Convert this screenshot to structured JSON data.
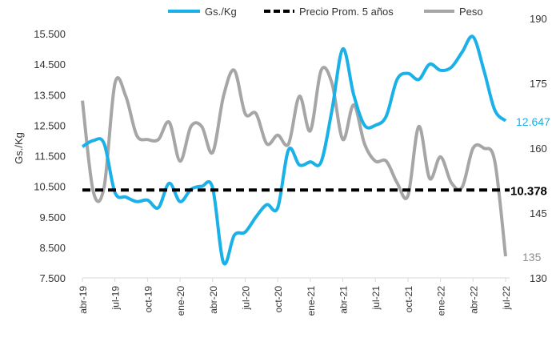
{
  "chart_data": {
    "type": "line",
    "title": "",
    "ylabel": "Gs./Kg",
    "ylim": [
      7500,
      16000
    ],
    "y2lim": [
      130,
      190
    ],
    "yticks": [
      "7.500",
      "8.500",
      "9.500",
      "10.500",
      "11.500",
      "12.500",
      "13.500",
      "14.500",
      "15.500"
    ],
    "y2ticks": [
      "130",
      "145",
      "160",
      "175",
      "190"
    ],
    "xtick_labels": [
      "abr-19",
      "jul-19",
      "oct-19",
      "ene-20",
      "abr-20",
      "jul-20",
      "oct-20",
      "ene-21",
      "abr-21",
      "jul-21",
      "oct-21",
      "ene-22",
      "abr-22",
      "jul-22"
    ],
    "legend": {
      "placement": "top",
      "entries": [
        "Gs./Kg",
        "Precio Prom. 5 años",
        "Peso"
      ]
    },
    "series": [
      {
        "name": "Gs./Kg",
        "axis": "left",
        "color": "#1ab0e8",
        "values": [
          11800,
          12000,
          11900,
          10300,
          10150,
          10000,
          10050,
          9800,
          10600,
          10000,
          10400,
          10500,
          10450,
          8000,
          8900,
          9000,
          9500,
          9900,
          9800,
          11700,
          11200,
          11300,
          11300,
          13000,
          15000,
          13500,
          12500,
          12500,
          12800,
          14000,
          14200,
          14000,
          14500,
          14300,
          14400,
          14900,
          15400,
          14300,
          13000,
          12647
        ],
        "end_label": "12.647"
      },
      {
        "name": "Precio Prom. 5 años",
        "axis": "left",
        "color": "#000000",
        "constant": 10378,
        "end_label": "10.378"
      },
      {
        "name": "Peso",
        "axis": "right",
        "color": "#a6a6a6",
        "values": [
          171,
          150,
          151,
          175,
          172,
          163,
          162,
          162,
          166,
          157,
          165,
          165,
          159,
          172,
          178,
          168,
          168,
          161,
          163,
          161,
          172,
          164,
          178,
          175,
          162,
          170,
          161,
          157,
          157,
          152,
          149,
          165,
          153,
          158,
          152,
          151,
          160,
          160,
          157,
          135
        ],
        "end_label": "135"
      }
    ]
  }
}
